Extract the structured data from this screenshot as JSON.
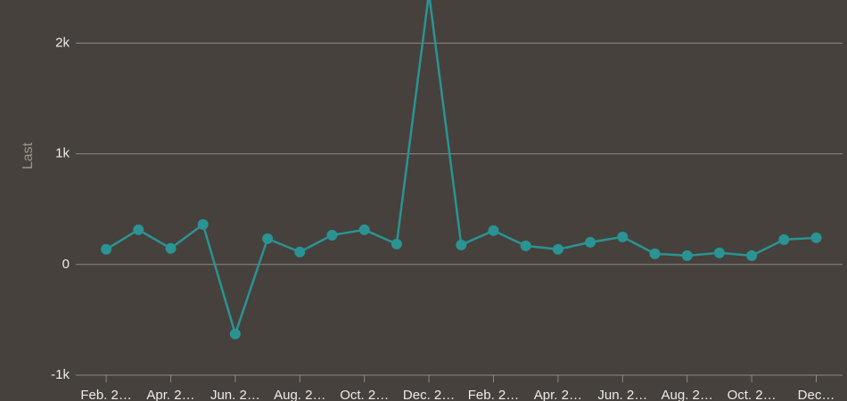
{
  "chart_data": {
    "type": "line",
    "y_label": "Last",
    "categories": [
      "Feb. 2…",
      null,
      "Apr. 2…",
      null,
      "Jun. 2…",
      null,
      "Aug. 2…",
      null,
      "Oct. 2…",
      null,
      "Dec. 2…",
      null,
      "Feb. 2…",
      null,
      "Apr. 2…",
      null,
      "Jun. 2…",
      null,
      "Aug. 2…",
      null,
      "Oct. 2…",
      null,
      "Dec…"
    ],
    "values": [
      137,
      314,
      145,
      362,
      -628,
      233,
      113,
      265,
      314,
      185,
      2450,
      177,
      306,
      169,
      137,
      201,
      249,
      97,
      80,
      105,
      80,
      225,
      241
    ],
    "color": "#2a9393",
    "ylim": [
      -1000,
      2390
    ],
    "yticks": [
      {
        "value": -1000,
        "label": "-1k"
      },
      0,
      {
        "value": 1000,
        "label": "1k"
      },
      {
        "value": 2000,
        "label": "2k"
      }
    ],
    "grid": true
  }
}
